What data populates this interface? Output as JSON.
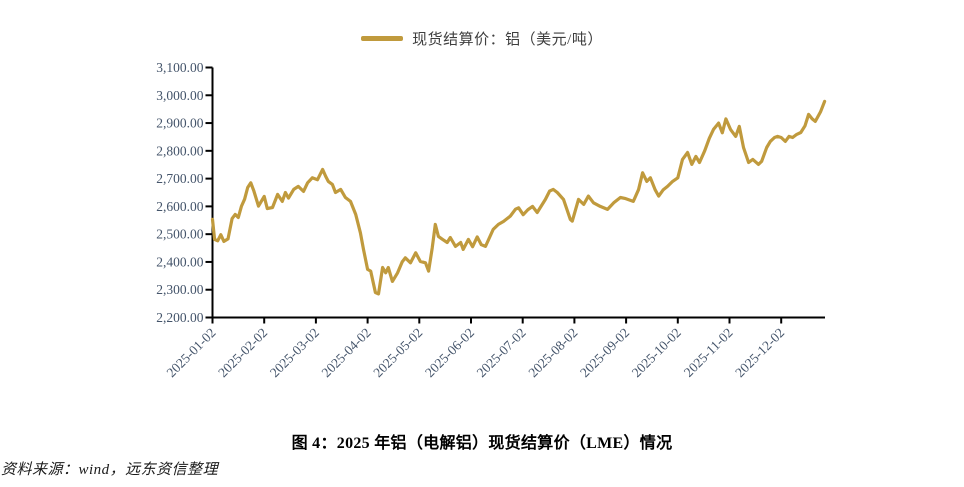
{
  "legend": {
    "label": "现货结算价：铝（美元/吨）"
  },
  "caption": "图 4：2025 年铝（电解铝）现货结算价（LME）情况",
  "source": "资料来源：wind，远东资信整理",
  "chart_data": {
    "type": "line",
    "title": "图 4：2025 年铝（电解铝）现货结算价（LME）情况",
    "series_name": "现货结算价：铝（美元/吨）",
    "ylabel": "",
    "xlabel": "",
    "ylim": [
      2200,
      3100
    ],
    "y_ticks": [
      2200,
      2300,
      2400,
      2500,
      2600,
      2700,
      2800,
      2900,
      3000,
      3100
    ],
    "x_tick_labels": [
      "2025-01-02",
      "2025-02-02",
      "2025-03-02",
      "2025-04-02",
      "2025-05-02",
      "2025-06-02",
      "2025-07-02",
      "2025-08-02",
      "2025-09-02",
      "2025-10-02",
      "2025-11-02",
      "2025-12-02"
    ],
    "x_unit": "months after 2025-01-02",
    "grid": false,
    "legend_position": "top-center",
    "line_color": "#C09A3D",
    "axis_color": "#000000",
    "tick_label_color": "#44546A",
    "points": [
      [
        0,
        2553
      ],
      [
        0.04,
        2481
      ],
      [
        0.1,
        2476
      ],
      [
        0.16,
        2498
      ],
      [
        0.22,
        2474
      ],
      [
        0.3,
        2483
      ],
      [
        0.38,
        2556
      ],
      [
        0.44,
        2571
      ],
      [
        0.5,
        2560
      ],
      [
        0.56,
        2601
      ],
      [
        0.62,
        2626
      ],
      [
        0.68,
        2668
      ],
      [
        0.74,
        2685
      ],
      [
        0.8,
        2655
      ],
      [
        0.89,
        2601
      ],
      [
        1,
        2636
      ],
      [
        1.06,
        2592
      ],
      [
        1.16,
        2596
      ],
      [
        1.26,
        2643
      ],
      [
        1.35,
        2618
      ],
      [
        1.41,
        2650
      ],
      [
        1.47,
        2630
      ],
      [
        1.57,
        2661
      ],
      [
        1.66,
        2672
      ],
      [
        1.76,
        2654
      ],
      [
        1.84,
        2685
      ],
      [
        1.93,
        2703
      ],
      [
        2.03,
        2696
      ],
      [
        2.13,
        2733
      ],
      [
        2.19,
        2708
      ],
      [
        2.24,
        2690
      ],
      [
        2.32,
        2679
      ],
      [
        2.38,
        2650
      ],
      [
        2.48,
        2661
      ],
      [
        2.57,
        2632
      ],
      [
        2.67,
        2618
      ],
      [
        2.77,
        2571
      ],
      [
        2.86,
        2505
      ],
      [
        2.92,
        2445
      ],
      [
        3,
        2373
      ],
      [
        3.06,
        2367
      ],
      [
        3.15,
        2290
      ],
      [
        3.21,
        2285
      ],
      [
        3.29,
        2380
      ],
      [
        3.35,
        2361
      ],
      [
        3.4,
        2380
      ],
      [
        3.48,
        2330
      ],
      [
        3.58,
        2361
      ],
      [
        3.67,
        2400
      ],
      [
        3.73,
        2415
      ],
      [
        3.83,
        2397
      ],
      [
        3.93,
        2433
      ],
      [
        4.02,
        2402
      ],
      [
        4.12,
        2397
      ],
      [
        4.18,
        2367
      ],
      [
        4.25,
        2450
      ],
      [
        4.31,
        2535
      ],
      [
        4.37,
        2492
      ],
      [
        4.45,
        2481
      ],
      [
        4.54,
        2470
      ],
      [
        4.6,
        2488
      ],
      [
        4.7,
        2456
      ],
      [
        4.8,
        2470
      ],
      [
        4.85,
        2445
      ],
      [
        4.95,
        2481
      ],
      [
        5.03,
        2455
      ],
      [
        5.12,
        2490
      ],
      [
        5.2,
        2462
      ],
      [
        5.28,
        2456
      ],
      [
        5.43,
        2517
      ],
      [
        5.53,
        2535
      ],
      [
        5.63,
        2546
      ],
      [
        5.76,
        2565
      ],
      [
        5.86,
        2590
      ],
      [
        5.92,
        2595
      ],
      [
        6.01,
        2570
      ],
      [
        6.1,
        2588
      ],
      [
        6.19,
        2600
      ],
      [
        6.28,
        2578
      ],
      [
        6.44,
        2625
      ],
      [
        6.52,
        2655
      ],
      [
        6.59,
        2661
      ],
      [
        6.67,
        2650
      ],
      [
        6.79,
        2625
      ],
      [
        6.92,
        2553
      ],
      [
        6.96,
        2547
      ],
      [
        7.08,
        2625
      ],
      [
        7.18,
        2607
      ],
      [
        7.27,
        2637
      ],
      [
        7.37,
        2613
      ],
      [
        7.5,
        2600
      ],
      [
        7.64,
        2589
      ],
      [
        7.76,
        2613
      ],
      [
        7.89,
        2632
      ],
      [
        7.99,
        2628
      ],
      [
        8.14,
        2618
      ],
      [
        8.24,
        2660
      ],
      [
        8.32,
        2721
      ],
      [
        8.4,
        2690
      ],
      [
        8.47,
        2703
      ],
      [
        8.56,
        2660
      ],
      [
        8.63,
        2637
      ],
      [
        8.72,
        2660
      ],
      [
        8.8,
        2672
      ],
      [
        8.9,
        2690
      ],
      [
        9,
        2703
      ],
      [
        9.09,
        2769
      ],
      [
        9.19,
        2794
      ],
      [
        9.27,
        2751
      ],
      [
        9.35,
        2780
      ],
      [
        9.42,
        2758
      ],
      [
        9.52,
        2800
      ],
      [
        9.61,
        2845
      ],
      [
        9.69,
        2877
      ],
      [
        9.79,
        2900
      ],
      [
        9.86,
        2865
      ],
      [
        9.93,
        2915
      ],
      [
        10.02,
        2877
      ],
      [
        10.12,
        2852
      ],
      [
        10.19,
        2888
      ],
      [
        10.27,
        2812
      ],
      [
        10.37,
        2758
      ],
      [
        10.45,
        2769
      ],
      [
        10.56,
        2751
      ],
      [
        10.62,
        2762
      ],
      [
        10.72,
        2812
      ],
      [
        10.79,
        2834
      ],
      [
        10.87,
        2848
      ],
      [
        10.93,
        2852
      ],
      [
        11,
        2848
      ],
      [
        11.08,
        2834
      ],
      [
        11.15,
        2852
      ],
      [
        11.22,
        2848
      ],
      [
        11.3,
        2859
      ],
      [
        11.38,
        2866
      ],
      [
        11.46,
        2890
      ],
      [
        11.53,
        2931
      ],
      [
        11.6,
        2915
      ],
      [
        11.66,
        2906
      ],
      [
        11.76,
        2940
      ],
      [
        11.84,
        2978
      ]
    ]
  }
}
